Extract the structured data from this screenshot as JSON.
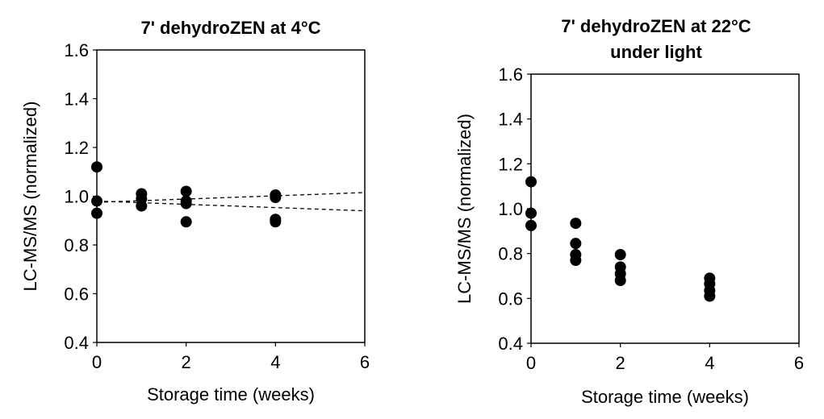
{
  "chart_data": [
    {
      "type": "scatter",
      "title_lines": [
        "7' dehydroZEN at 4°C"
      ],
      "xlabel": "Storage time (weeks)",
      "ylabel": "LC-MS/MS (normalized)",
      "xlim": [
        0,
        6
      ],
      "ylim": [
        0.4,
        1.6
      ],
      "xticks": [
        "0",
        "2",
        "4",
        "6"
      ],
      "yticks": [
        "0.4",
        "0.6",
        "0.8",
        "1.0",
        "1.2",
        "1.4",
        "1.6"
      ],
      "points": [
        {
          "x": 0,
          "y": 1.12
        },
        {
          "x": 0,
          "y": 0.98
        },
        {
          "x": 0,
          "y": 0.93
        },
        {
          "x": 1,
          "y": 1.01
        },
        {
          "x": 1,
          "y": 0.99
        },
        {
          "x": 1,
          "y": 0.96
        },
        {
          "x": 2,
          "y": 1.02
        },
        {
          "x": 2,
          "y": 0.98
        },
        {
          "x": 2,
          "y": 0.97
        },
        {
          "x": 2,
          "y": 0.895
        },
        {
          "x": 4,
          "y": 1.005
        },
        {
          "x": 4,
          "y": 0.995
        },
        {
          "x": 4,
          "y": 0.905
        },
        {
          "x": 4,
          "y": 0.895
        }
      ],
      "trend_lines": [
        {
          "x": [
            0,
            6
          ],
          "y": [
            0.975,
            1.015
          ],
          "style": "dashed"
        },
        {
          "x": [
            0,
            6
          ],
          "y": [
            0.98,
            0.94
          ],
          "style": "dashed"
        }
      ],
      "grid": false
    },
    {
      "type": "scatter",
      "title_lines": [
        "7' dehydroZEN at 22°C",
        "under light"
      ],
      "xlabel": "Storage time (weeks)",
      "ylabel": "LC-MS/MS (normalized)",
      "xlim": [
        0,
        6
      ],
      "ylim": [
        0.4,
        1.6
      ],
      "xticks": [
        "0",
        "2",
        "4",
        "6"
      ],
      "yticks": [
        "0.4",
        "0.6",
        "0.8",
        "1.0",
        "1.2",
        "1.4",
        "1.6"
      ],
      "points": [
        {
          "x": 0,
          "y": 1.12
        },
        {
          "x": 0,
          "y": 0.98
        },
        {
          "x": 0,
          "y": 0.925
        },
        {
          "x": 1,
          "y": 0.935
        },
        {
          "x": 1,
          "y": 0.845
        },
        {
          "x": 1,
          "y": 0.795
        },
        {
          "x": 1,
          "y": 0.77
        },
        {
          "x": 2,
          "y": 0.795
        },
        {
          "x": 2,
          "y": 0.74
        },
        {
          "x": 2,
          "y": 0.71
        },
        {
          "x": 2,
          "y": 0.68
        },
        {
          "x": 4,
          "y": 0.69
        },
        {
          "x": 4,
          "y": 0.665
        },
        {
          "x": 4,
          "y": 0.635
        },
        {
          "x": 4,
          "y": 0.61
        }
      ],
      "trend_lines": [],
      "grid": false
    }
  ]
}
